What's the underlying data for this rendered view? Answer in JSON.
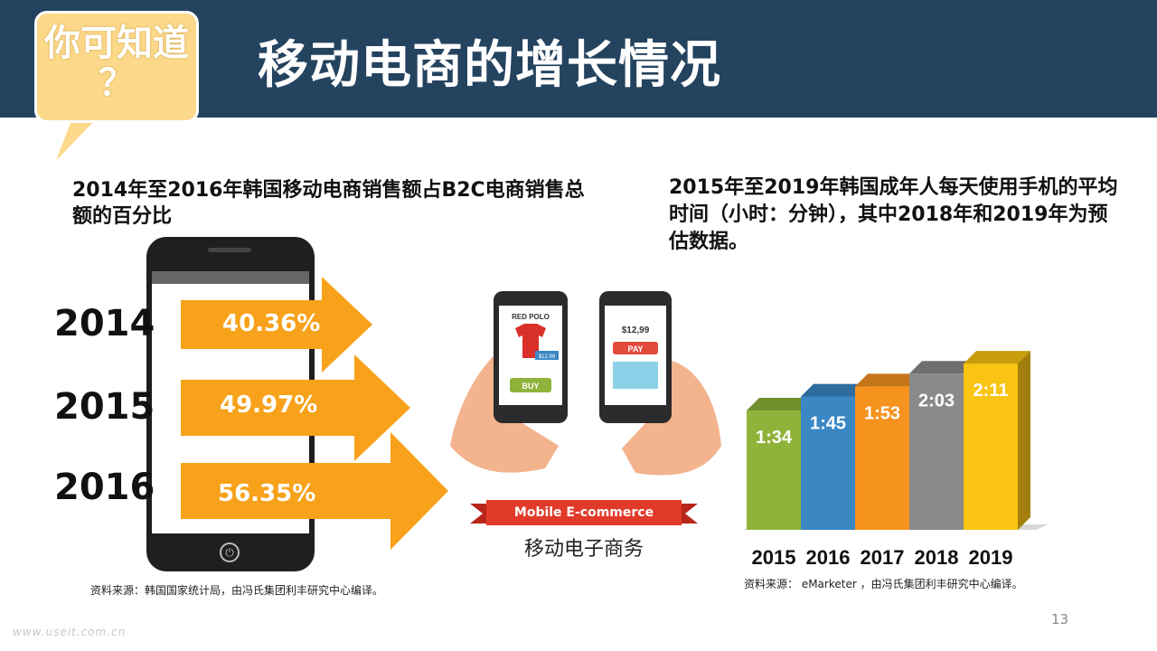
{
  "header": {
    "badge_line1": "你可知道",
    "badge_line2": "？",
    "title": "移动电商的增长情况",
    "accent_color": "#fdd36b",
    "bg_color": "#24435f"
  },
  "left_panel": {
    "heading": "2014年至2016年韩国移动电商销售额占B2C电商销售总额的百分比",
    "source": "资料来源：韩国国家统计局，由冯氏集团利丰研究中心编译。",
    "rows": [
      {
        "year": "2014",
        "value": "40.36%"
      },
      {
        "year": "2015",
        "value": "49.97%"
      },
      {
        "year": "2016",
        "value": "56.35%"
      }
    ],
    "arrow_color": "#f7a21a",
    "home_icon": "power-icon"
  },
  "middle_panel": {
    "banner": "Mobile E-commerce",
    "label": "移动电子商务",
    "phone1_brand": "RED POLO",
    "phone1_price": "$12,99",
    "phone1_button": "BUY",
    "phone2_price": "$12,99",
    "phone2_button": "PAY"
  },
  "right_panel": {
    "heading": "2015年至2019年韩国成年人每天使用手机的平均时间（小时：分钟），其中2018年和2019年为预估数据。",
    "source": "资料来源： eMarketer ，由冯氏集团利丰研究中心编译。"
  },
  "chart_data": {
    "type": "bar",
    "categories": [
      "2015",
      "2016",
      "2017",
      "2018",
      "2019"
    ],
    "values": [
      94,
      105,
      113,
      123,
      131
    ],
    "labels": [
      "1:34",
      "1:45",
      "1:53",
      "2:03",
      "2:11"
    ],
    "colors": [
      "#8fb33a",
      "#3a87c4",
      "#f6921e",
      "#8a8a8a",
      "#f9c412"
    ],
    "title": "",
    "xlabel": "",
    "ylabel": "",
    "grid": false
  },
  "page_number": "13",
  "watermark": "www.useit.com.cn"
}
